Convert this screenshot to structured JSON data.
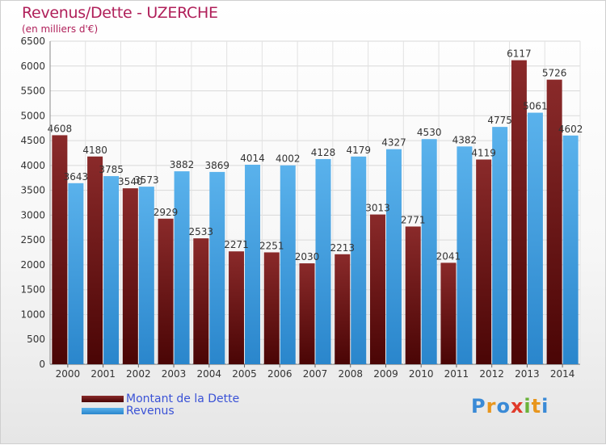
{
  "header": {
    "title": "Revenus/Dette - UZERCHE",
    "subtitle": "(en milliers d'€)"
  },
  "legend": [
    {
      "label": "Montant de la Dette",
      "color": "#7a1a1a"
    },
    {
      "label": "Revenus",
      "color": "#4aa3e0"
    }
  ],
  "logo": {
    "text": "Proxiti",
    "letters": [
      {
        "ch": "P",
        "color": "#3a8ad6"
      },
      {
        "ch": "r",
        "color": "#e8961e"
      },
      {
        "ch": "o",
        "color": "#3a8ad6"
      },
      {
        "ch": "x",
        "color": "#e03a2a"
      },
      {
        "ch": "i",
        "color": "#6ab23a"
      },
      {
        "ch": "t",
        "color": "#e8961e"
      },
      {
        "ch": "i",
        "color": "#3a8ad6"
      }
    ]
  },
  "chart_data": {
    "type": "bar",
    "title": "Revenus/Dette - UZERCHE",
    "subtitle": "(en milliers d'€)",
    "categories": [
      "2000",
      "2001",
      "2002",
      "2003",
      "2004",
      "2005",
      "2006",
      "2007",
      "2008",
      "2009",
      "2010",
      "2011",
      "2012",
      "2013",
      "2014"
    ],
    "series": [
      {
        "name": "Montant de la Dette",
        "color": "#7a1a1a",
        "values": [
          4608,
          4180,
          3540,
          2929,
          2533,
          2271,
          2251,
          2030,
          2213,
          3013,
          2771,
          2041,
          4119,
          6117,
          5726
        ],
        "labels": [
          "4608",
          "4180",
          "3540",
          "2929",
          "2533",
          "2271",
          "2251",
          "2030",
          "2213",
          "3013",
          "2771",
          "2041",
          "4119",
          "6117",
          "5726"
        ]
      },
      {
        "name": "Revenus",
        "color": "#4aa3e0",
        "values": [
          3643,
          3785,
          3573,
          3882,
          3869,
          4014,
          4002,
          4128,
          4179,
          4327,
          4530,
          4382,
          4775,
          5061,
          4602
        ],
        "labels": [
          "3643",
          "3785",
          "3573",
          "3882",
          "3869",
          "4014",
          "4002",
          "4128",
          "4179",
          "4327",
          "4530",
          "4382",
          "4775",
          "5061",
          "4602"
        ]
      }
    ],
    "ylim": [
      0,
      6500
    ],
    "yticks": [
      0,
      500,
      1000,
      1500,
      2000,
      2500,
      3000,
      3500,
      4000,
      4500,
      5000,
      5500,
      6000,
      6500
    ],
    "grid": true,
    "legend_position": "bottom-left"
  }
}
